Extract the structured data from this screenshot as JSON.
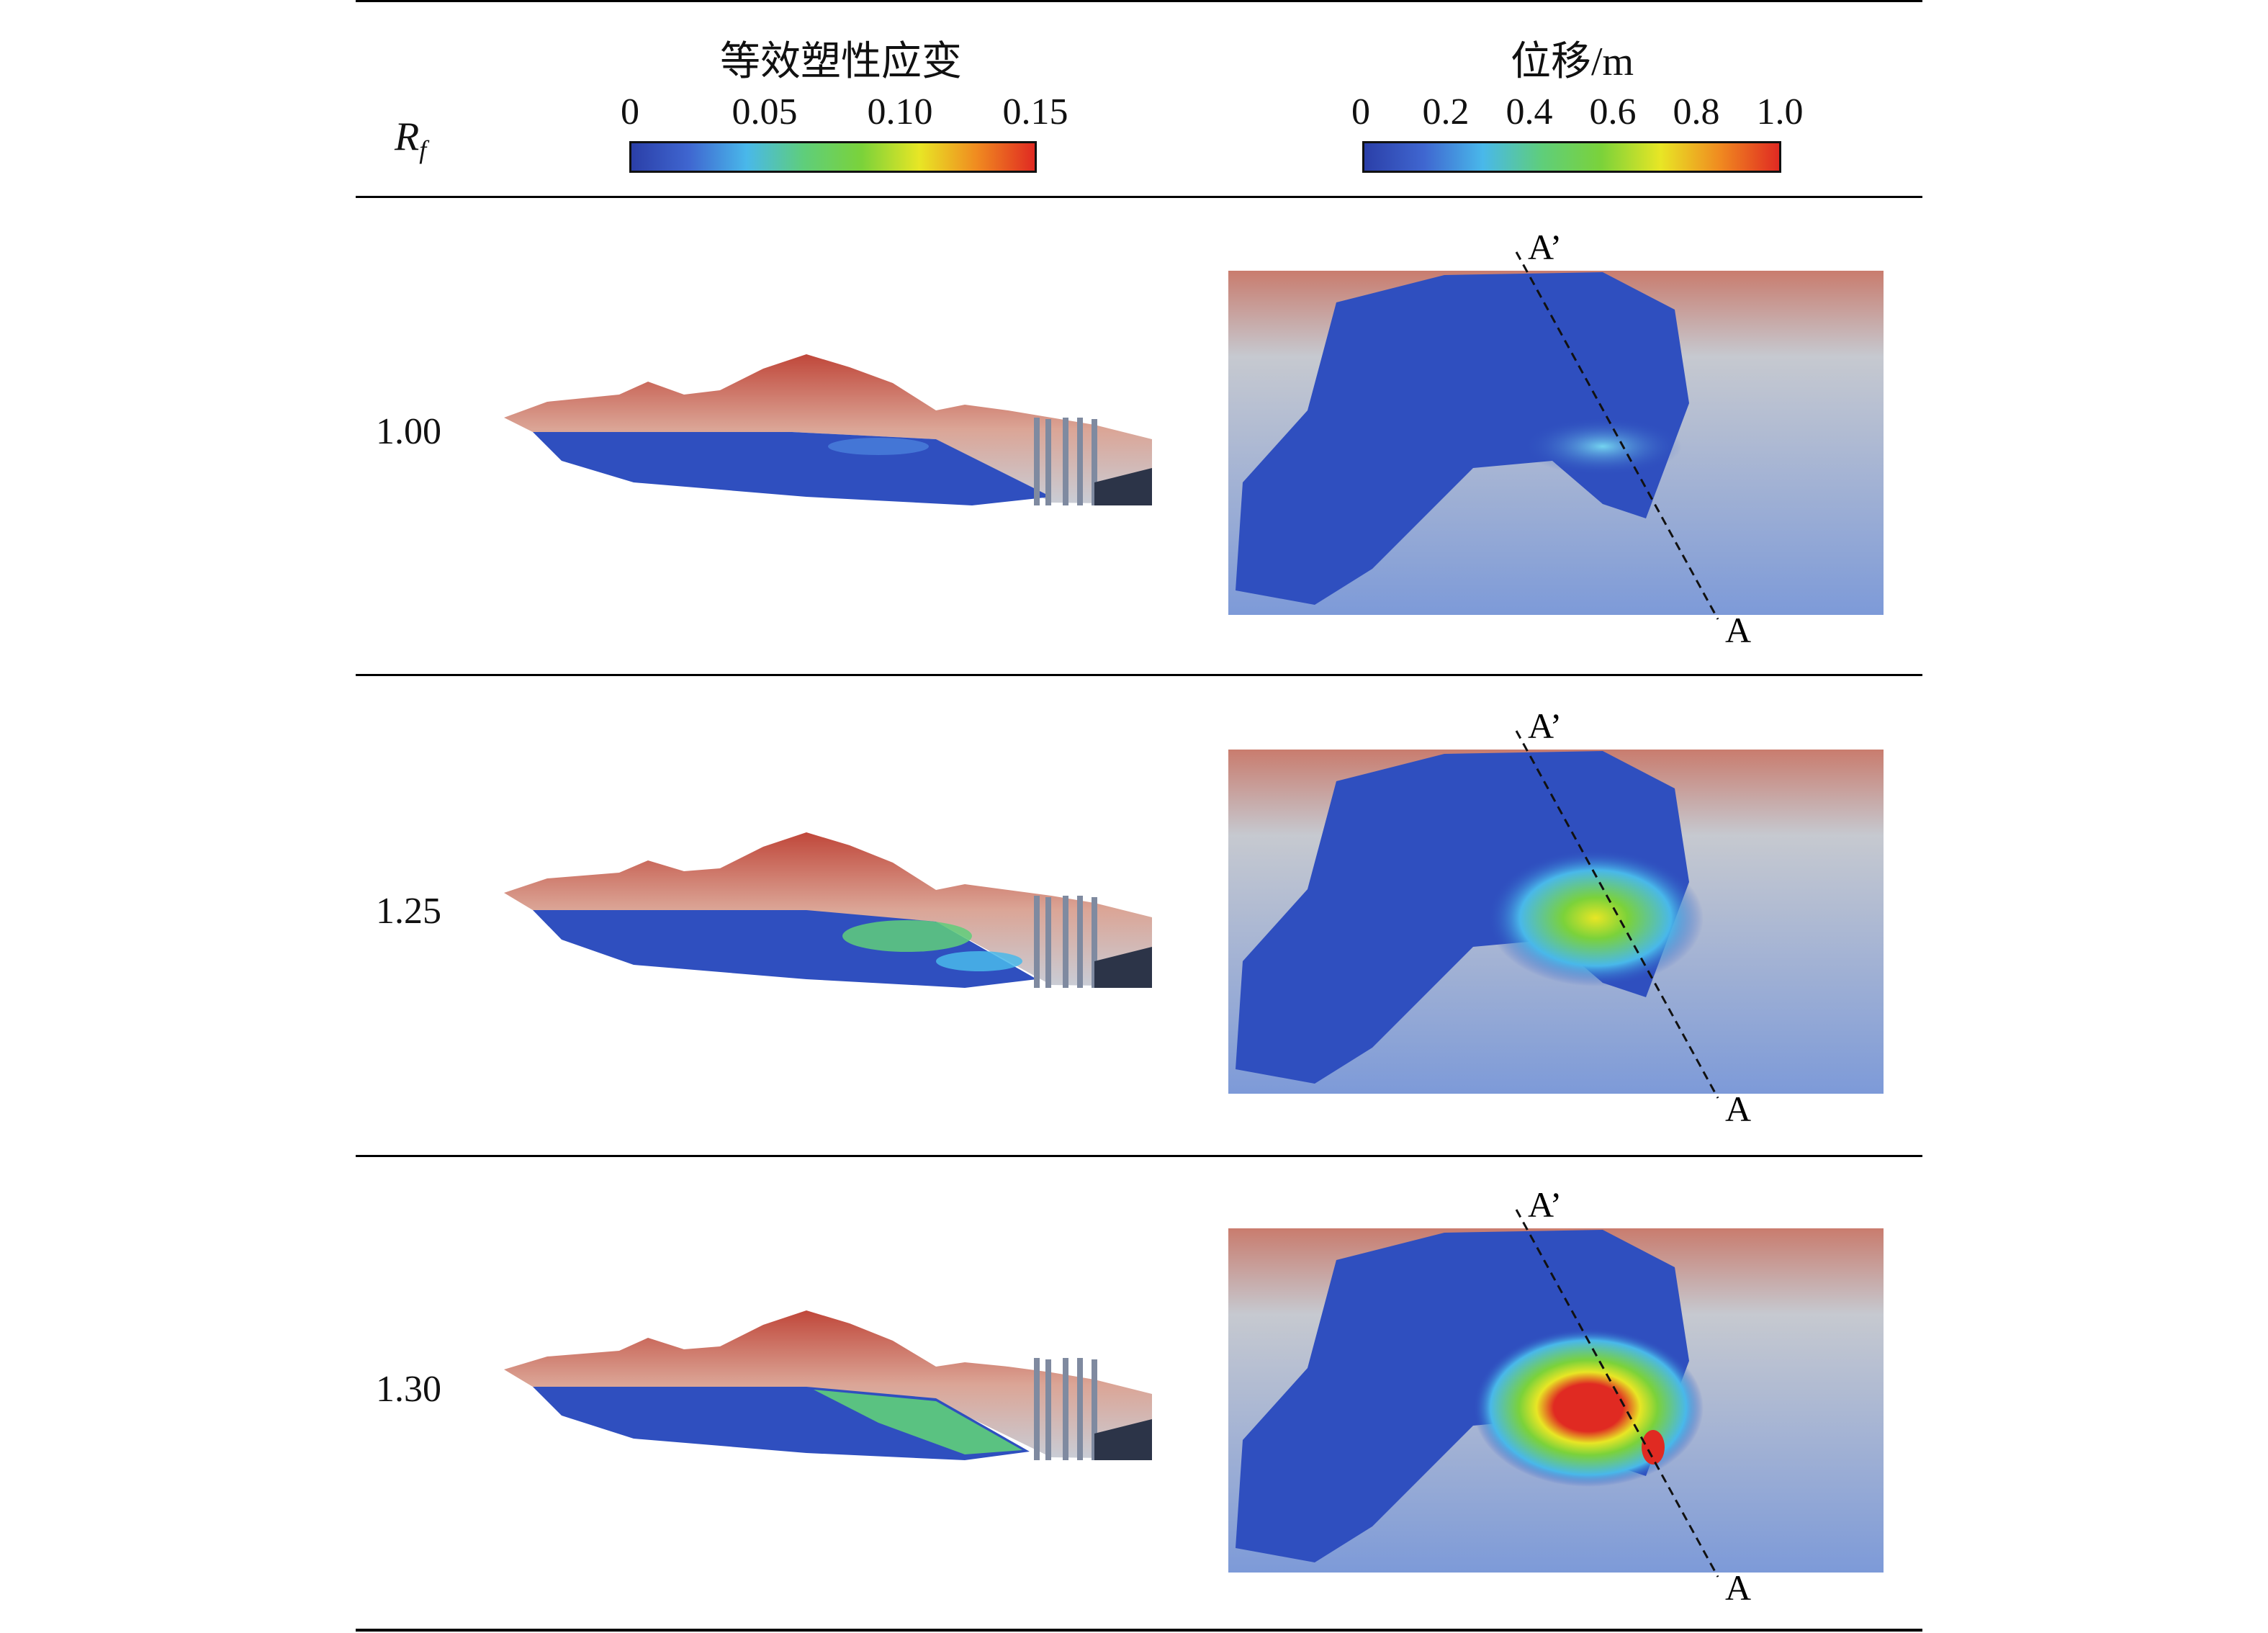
{
  "header": {
    "row_param_symbol": "R",
    "row_param_sub": "f",
    "left_panel": {
      "title": "等效塑性应变",
      "ticks": [
        "0",
        "0.05",
        "0.10",
        "0.15"
      ],
      "gradient_colors": [
        "#2b3fa8",
        "#3f66d0",
        "#49b8ea",
        "#5fce7a",
        "#7bd23a",
        "#e8e625",
        "#f08a20",
        "#e02a22"
      ]
    },
    "right_panel": {
      "title": "位移/m",
      "ticks": [
        "0",
        "0.2",
        "0.4",
        "0.6",
        "0.8",
        "1.0"
      ],
      "gradient_colors": [
        "#2b3fa8",
        "#3f66d0",
        "#49b8ea",
        "#5fce7a",
        "#7bd23a",
        "#e8e625",
        "#f08a20",
        "#e02a22"
      ]
    }
  },
  "section_marks": {
    "start": "A’",
    "end": "A"
  },
  "rows": [
    {
      "rf": "1.00",
      "strain_level": 0.0,
      "disp_level": 0.15
    },
    {
      "rf": "1.25",
      "strain_level": 0.06,
      "disp_level": 0.7
    },
    {
      "rf": "1.30",
      "strain_level": 0.08,
      "disp_level": 1.0
    }
  ],
  "colors": {
    "model_blue": "#2f4fbf",
    "terrain_top": "#c0473a",
    "terrain_mid": "#d9a89a",
    "terrain_low": "#c9cdd6"
  }
}
